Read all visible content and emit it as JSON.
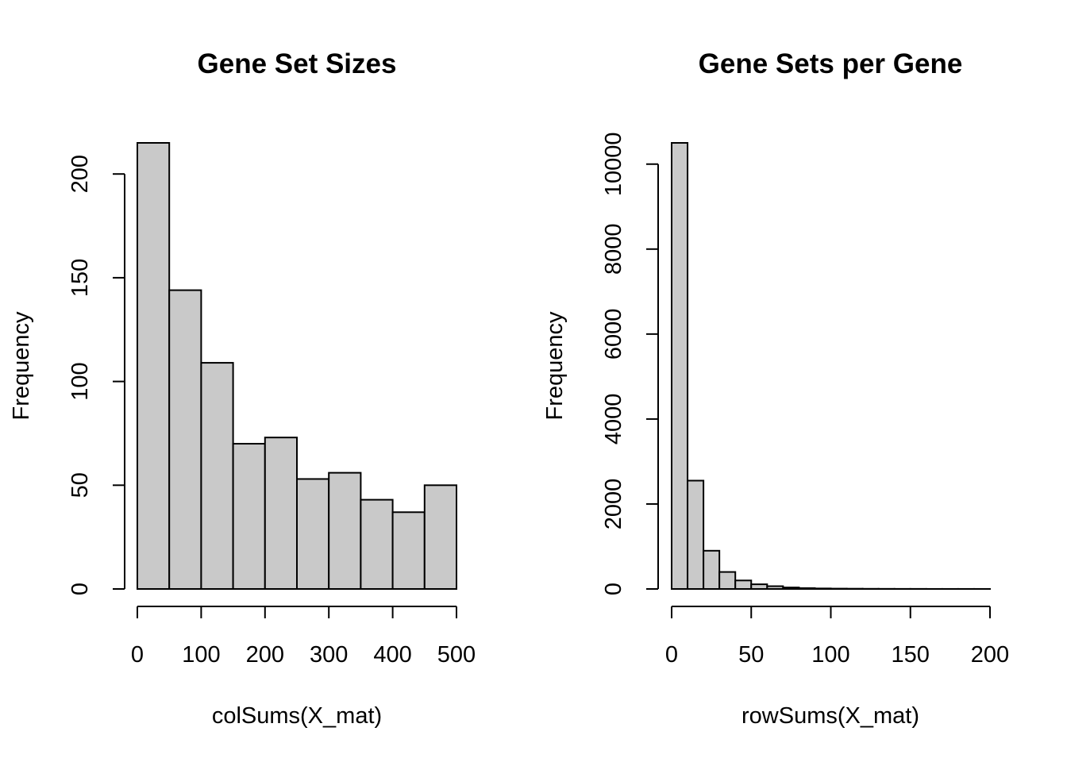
{
  "chart_data": [
    {
      "type": "bar",
      "title": "Gene Set Sizes",
      "xlabel": "colSums(X_mat)",
      "ylabel": "Frequency",
      "bin_edges": [
        0,
        50,
        100,
        150,
        200,
        250,
        300,
        350,
        400,
        450,
        500
      ],
      "values": [
        215,
        144,
        109,
        70,
        73,
        53,
        56,
        43,
        37,
        50
      ],
      "xlim": [
        0,
        500
      ],
      "ylim": [
        0,
        215
      ],
      "x_ticks": [
        0,
        100,
        200,
        300,
        400,
        500
      ],
      "y_ticks": [
        0,
        50,
        100,
        150,
        200
      ],
      "grid": false,
      "bar_color": "#c9c9c9"
    },
    {
      "type": "bar",
      "title": "Gene Sets per Gene",
      "xlabel": "rowSums(X_mat)",
      "ylabel": "Frequency",
      "bin_edges": [
        0,
        10,
        20,
        30,
        40,
        50,
        60,
        70,
        80,
        90,
        100,
        110,
        120,
        130,
        140,
        150,
        160,
        170,
        180,
        190,
        200
      ],
      "values": [
        10500,
        2550,
        900,
        400,
        200,
        110,
        65,
        35,
        20,
        12,
        8,
        6,
        4,
        3,
        2,
        2,
        1,
        1,
        1,
        1
      ],
      "xlim": [
        0,
        200
      ],
      "ylim": [
        0,
        10500
      ],
      "x_ticks": [
        0,
        50,
        100,
        150,
        200
      ],
      "y_ticks": [
        0,
        2000,
        4000,
        6000,
        8000,
        10000
      ],
      "grid": false,
      "bar_color": "#c9c9c9"
    }
  ]
}
